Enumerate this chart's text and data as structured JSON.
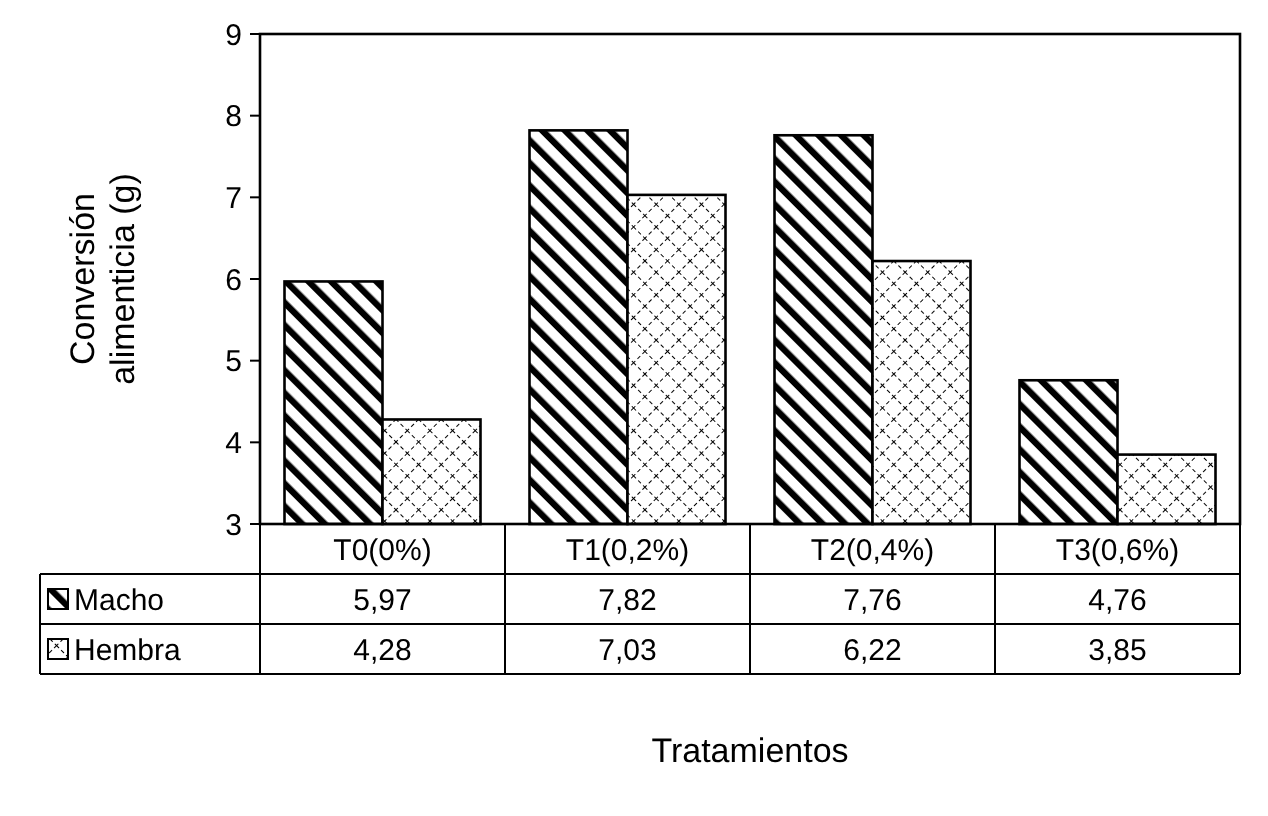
{
  "chart_data": {
    "type": "bar",
    "xlabel": "Tratamientos",
    "ylabel": "Conversión alimenticia (g)",
    "categories": [
      "T0(0%)",
      "T1(0,2%)",
      "T2(0,4%)",
      "T3(0,6%)"
    ],
    "series": [
      {
        "name": "Macho",
        "color": "#000000",
        "values": [
          5.97,
          7.82,
          7.76,
          4.76
        ],
        "value_labels": [
          "5,97",
          "7,82",
          "7,76",
          "4,76"
        ]
      },
      {
        "name": "Hembra",
        "color": "#000000",
        "values": [
          4.28,
          7.03,
          6.22,
          3.85
        ],
        "value_labels": [
          "4,28",
          "7,03",
          "6,22",
          "3,85"
        ]
      }
    ],
    "ylim": [
      3,
      9
    ],
    "yticks": [
      3,
      4,
      5,
      6,
      7,
      8,
      9
    ],
    "grid": false,
    "legend": "bottom left"
  }
}
